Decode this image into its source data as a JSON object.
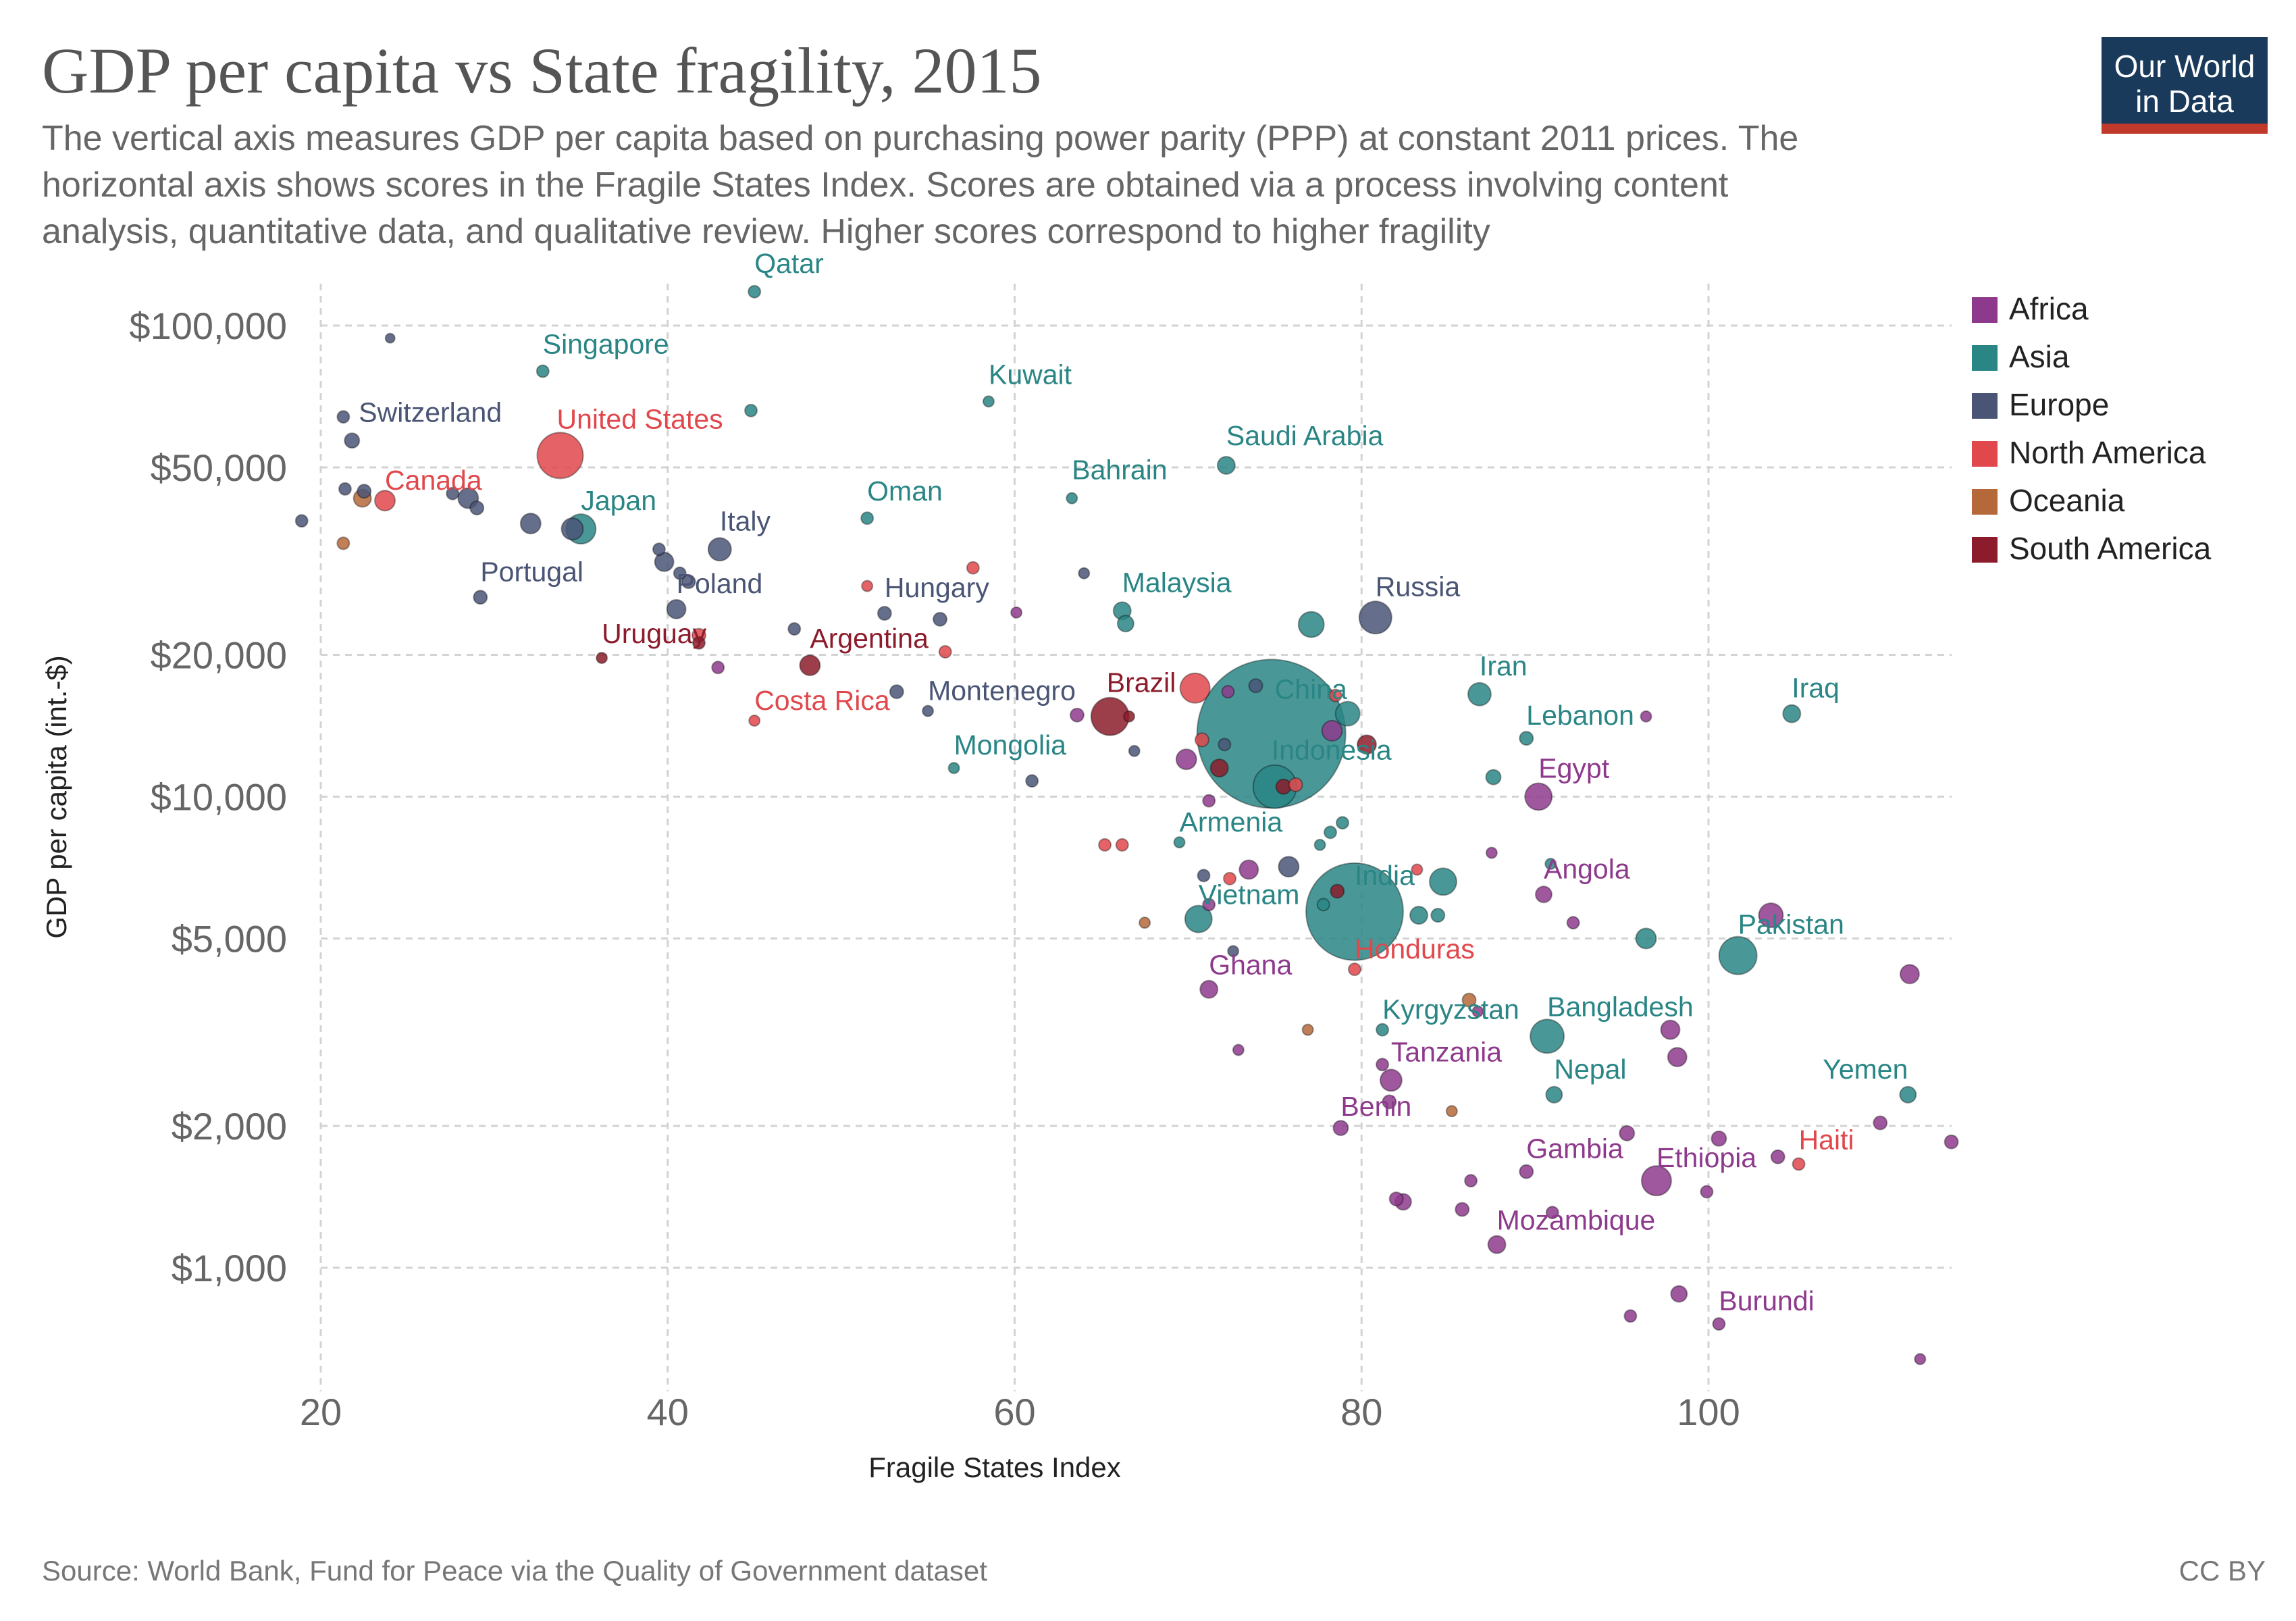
{
  "header": {
    "title": "GDP per capita vs State fragility, 2015",
    "subtitle_lines": [
      "The vertical axis measures GDP per capita based on purchasing power parity (PPP) at constant 2011 prices. The",
      "horizontal axis shows scores in the Fragile States Index. Scores are obtained via a process involving content",
      "analysis, quantitative data, and qualitative review. Higher scores correspond to higher fragility"
    ]
  },
  "logo": {
    "line1": "Our World",
    "line2": "in Data",
    "bg": "#1a3a5c",
    "accent": "#c0392b"
  },
  "footer": {
    "source": "Source: World Bank, Fund for Peace via the Quality of Government dataset",
    "license": "CC BY"
  },
  "colors": {
    "Africa": "#8e3a8c",
    "Asia": "#2a8585",
    "Europe": "#4a5575",
    "North America": "#e0484c",
    "Oceania": "#b5693a",
    "South America": "#8c1c2c"
  },
  "chart_data": {
    "type": "scatter",
    "title": "GDP per capita vs State fragility, 2015",
    "xlabel": "Fragile States Index",
    "ylabel": "GDP per capita (int.-$)",
    "xlim": [
      19.5,
      114.5
    ],
    "ylim": [
      600,
      120000
    ],
    "yscale": "log",
    "x_ticks": [
      "20",
      "40",
      "60",
      "80",
      "100"
    ],
    "x_tick_values": [
      20,
      40,
      60,
      80,
      100
    ],
    "y_ticks": [
      "$1,000",
      "$2,000",
      "$5,000",
      "$10,000",
      "$20,000",
      "$50,000",
      "$100,000"
    ],
    "y_tick_values": [
      1000,
      2000,
      5000,
      10000,
      20000,
      50000,
      100000
    ],
    "grid": true,
    "legend_position": "right",
    "legend": [
      "Africa",
      "Asia",
      "Europe",
      "North America",
      "Oceania",
      "South America"
    ],
    "points": [
      {
        "name": "Qatar",
        "label": "Qatar",
        "x": 45,
        "y": 118000,
        "r": 9,
        "region": "Asia"
      },
      {
        "name": "Singapore",
        "label": "Singapore",
        "x": 32.8,
        "y": 80000,
        "r": 9,
        "region": "Asia"
      },
      {
        "name": "Kuwait",
        "label": "Kuwait",
        "x": 58.5,
        "y": 69000,
        "r": 8,
        "region": "Asia"
      },
      {
        "name": "Switzerland",
        "label": "Switzerland",
        "x": 21.8,
        "y": 57000,
        "r": 11,
        "region": "Europe"
      },
      {
        "name": "United States",
        "label": "United States",
        "x": 33.8,
        "y": 53000,
        "r": 34,
        "region": "North America"
      },
      {
        "name": "Saudi Arabia",
        "label": "Saudi Arabia",
        "x": 72.2,
        "y": 50500,
        "r": 13,
        "region": "Asia"
      },
      {
        "name": "Bahrain",
        "label": "Bahrain",
        "x": 63.3,
        "y": 43000,
        "r": 8,
        "region": "Asia"
      },
      {
        "name": "Canada",
        "label": "Canada",
        "x": 23.7,
        "y": 42500,
        "r": 15,
        "region": "North America"
      },
      {
        "name": "Oman",
        "label": "Oman",
        "x": 51.5,
        "y": 39000,
        "r": 9,
        "region": "Asia"
      },
      {
        "name": "Japan",
        "label": "Japan",
        "x": 35,
        "y": 37000,
        "r": 22,
        "region": "Asia"
      },
      {
        "name": "Italy",
        "label": "Italy",
        "x": 43,
        "y": 33500,
        "r": 17,
        "region": "Europe"
      },
      {
        "name": "Portugal",
        "label": "Portugal",
        "x": 29.2,
        "y": 26500,
        "r": 10,
        "region": "Europe"
      },
      {
        "name": "Poland",
        "label": "Poland",
        "x": 40.5,
        "y": 25000,
        "r": 14,
        "region": "Europe"
      },
      {
        "name": "Hungary",
        "label": "Hungary",
        "x": 52.5,
        "y": 24500,
        "r": 10,
        "region": "Europe"
      },
      {
        "name": "Malaysia",
        "label": "Malaysia",
        "x": 66.2,
        "y": 24800,
        "r": 13,
        "region": "Asia"
      },
      {
        "name": "Russia",
        "label": "Russia",
        "x": 80.8,
        "y": 24000,
        "r": 24,
        "region": "Europe"
      },
      {
        "name": "Uruguay",
        "label": "Uruguay",
        "x": 36.2,
        "y": 19700,
        "r": 8,
        "region": "South America"
      },
      {
        "name": "Argentina",
        "label": "Argentina",
        "x": 48.2,
        "y": 19000,
        "r": 15,
        "region": "South America"
      },
      {
        "name": "Iran",
        "label": "Iran",
        "x": 86.8,
        "y": 16500,
        "r": 17,
        "region": "Asia"
      },
      {
        "name": "Iraq",
        "label": "Iraq",
        "x": 104.8,
        "y": 15000,
        "r": 13,
        "region": "Asia"
      },
      {
        "name": "Costa Rica",
        "label": "Costa Rica",
        "x": 45,
        "y": 14500,
        "r": 8,
        "region": "North America"
      },
      {
        "name": "Montenegro",
        "label": "Montenegro",
        "x": 55,
        "y": 15200,
        "r": 8,
        "region": "Europe"
      },
      {
        "name": "Brazil",
        "label": "Brazil",
        "x": 65.5,
        "y": 14800,
        "r": 28,
        "region": "South America"
      },
      {
        "name": "China",
        "label": "China",
        "x": 74.8,
        "y": 13600,
        "r": 110,
        "region": "Asia"
      },
      {
        "name": "Lebanon",
        "label": "Lebanon",
        "x": 89.5,
        "y": 13300,
        "r": 10,
        "region": "Asia"
      },
      {
        "name": "Mongolia",
        "label": "Mongolia",
        "x": 56.5,
        "y": 11500,
        "r": 8,
        "region": "Asia"
      },
      {
        "name": "Indonesia",
        "label": "Indonesia",
        "x": 75,
        "y": 10500,
        "r": 32,
        "region": "Asia"
      },
      {
        "name": "Egypt",
        "label": "Egypt",
        "x": 90.2,
        "y": 10000,
        "r": 20,
        "region": "Africa"
      },
      {
        "name": "Armenia",
        "label": "Armenia",
        "x": 69.5,
        "y": 8000,
        "r": 8,
        "region": "Asia"
      },
      {
        "name": "India",
        "label": "India",
        "x": 79.6,
        "y": 5700,
        "r": 72,
        "region": "Asia"
      },
      {
        "name": "Angola",
        "label": "Angola",
        "x": 90.5,
        "y": 6200,
        "r": 12,
        "region": "Africa"
      },
      {
        "name": "Vietnam",
        "label": "Vietnam",
        "x": 70.6,
        "y": 5500,
        "r": 20,
        "region": "Asia"
      },
      {
        "name": "Pakistan",
        "label": "Pakistan",
        "x": 101.7,
        "y": 4600,
        "r": 28,
        "region": "Asia"
      },
      {
        "name": "Honduras",
        "label": "Honduras",
        "x": 79.6,
        "y": 4300,
        "r": 9,
        "region": "North America"
      },
      {
        "name": "Ghana",
        "label": "Ghana",
        "x": 71.2,
        "y": 3900,
        "r": 13,
        "region": "Africa"
      },
      {
        "name": "Kyrgyzstan",
        "label": "Kyrgyzstan",
        "x": 81.2,
        "y": 3200,
        "r": 9,
        "region": "Asia"
      },
      {
        "name": "Bangladesh",
        "label": "Bangladesh",
        "x": 90.7,
        "y": 3100,
        "r": 25,
        "region": "Asia"
      },
      {
        "name": "Tanzania",
        "label": "Tanzania",
        "x": 81.7,
        "y": 2500,
        "r": 16,
        "region": "Africa"
      },
      {
        "name": "Nepal",
        "label": "Nepal",
        "x": 91.1,
        "y": 2330,
        "r": 12,
        "region": "Asia"
      },
      {
        "name": "Yemen",
        "label": "Yemen",
        "x": 111.5,
        "y": 2330,
        "r": 12,
        "region": "Asia"
      },
      {
        "name": "Benin",
        "label": "Benin",
        "x": 78.8,
        "y": 1980,
        "r": 11,
        "region": "Africa"
      },
      {
        "name": "Ethiopia",
        "label": "Ethiopia",
        "x": 97,
        "y": 1530,
        "r": 22,
        "region": "Africa"
      },
      {
        "name": "Haiti",
        "label": "Haiti",
        "x": 105.2,
        "y": 1660,
        "r": 9,
        "region": "North America"
      },
      {
        "name": "Gambia",
        "label": "Gambia",
        "x": 89.5,
        "y": 1600,
        "r": 10,
        "region": "Africa"
      },
      {
        "name": "Mozambique",
        "label": "Mozambique",
        "x": 87.8,
        "y": 1120,
        "r": 13,
        "region": "Africa"
      },
      {
        "name": "Burundi",
        "label": "Burundi",
        "x": 100.6,
        "y": 760,
        "r": 9,
        "region": "Africa"
      },
      {
        "x": 24,
        "y": 94000,
        "r": 7,
        "region": "Europe"
      },
      {
        "x": 21.3,
        "y": 64000,
        "r": 9,
        "region": "Europe"
      },
      {
        "x": 44.8,
        "y": 66000,
        "r": 9,
        "region": "Asia"
      },
      {
        "x": 21.4,
        "y": 45000,
        "r": 9,
        "region": "Europe"
      },
      {
        "x": 22.5,
        "y": 44500,
        "r": 10,
        "region": "Europe"
      },
      {
        "x": 22.4,
        "y": 43000,
        "r": 13,
        "region": "Oceania"
      },
      {
        "x": 27.6,
        "y": 44000,
        "r": 9,
        "region": "Europe"
      },
      {
        "x": 28.5,
        "y": 43000,
        "r": 15,
        "region": "Europe"
      },
      {
        "x": 29,
        "y": 41000,
        "r": 10,
        "region": "Europe"
      },
      {
        "x": 18.9,
        "y": 38500,
        "r": 9,
        "region": "Europe"
      },
      {
        "x": 32.1,
        "y": 38000,
        "r": 15,
        "region": "Europe"
      },
      {
        "x": 34.5,
        "y": 37000,
        "r": 16,
        "region": "Europe"
      },
      {
        "x": 21.3,
        "y": 34500,
        "r": 9,
        "region": "Oceania"
      },
      {
        "x": 39.5,
        "y": 33500,
        "r": 9,
        "region": "Europe"
      },
      {
        "x": 39.8,
        "y": 31500,
        "r": 14,
        "region": "Europe"
      },
      {
        "x": 40.7,
        "y": 29800,
        "r": 9,
        "region": "Europe"
      },
      {
        "x": 41.2,
        "y": 28600,
        "r": 10,
        "region": "Europe"
      },
      {
        "x": 57.6,
        "y": 30600,
        "r": 9,
        "region": "North America"
      },
      {
        "x": 64,
        "y": 29800,
        "r": 8,
        "region": "Europe"
      },
      {
        "x": 51.5,
        "y": 28000,
        "r": 8,
        "region": "North America"
      },
      {
        "x": 60.1,
        "y": 24600,
        "r": 8,
        "region": "Africa"
      },
      {
        "x": 55.7,
        "y": 23800,
        "r": 10,
        "region": "Europe"
      },
      {
        "x": 47.3,
        "y": 22700,
        "r": 9,
        "region": "Europe"
      },
      {
        "x": 66.4,
        "y": 23300,
        "r": 12,
        "region": "Asia"
      },
      {
        "x": 77.1,
        "y": 23200,
        "r": 19,
        "region": "Asia"
      },
      {
        "x": 41.8,
        "y": 22000,
        "r": 10,
        "region": "North America"
      },
      {
        "x": 41.8,
        "y": 21200,
        "r": 9,
        "region": "South America"
      },
      {
        "x": 56,
        "y": 20300,
        "r": 9,
        "region": "North America"
      },
      {
        "x": 42.9,
        "y": 18800,
        "r": 9,
        "region": "Africa"
      },
      {
        "x": 53.2,
        "y": 16700,
        "r": 10,
        "region": "Europe"
      },
      {
        "x": 70.4,
        "y": 17000,
        "r": 22,
        "region": "North America"
      },
      {
        "x": 72.3,
        "y": 16700,
        "r": 9,
        "region": "Africa"
      },
      {
        "x": 73.9,
        "y": 17200,
        "r": 10,
        "region": "Europe"
      },
      {
        "x": 78.5,
        "y": 16400,
        "r": 9,
        "region": "North America"
      },
      {
        "x": 79.2,
        "y": 15000,
        "r": 18,
        "region": "Asia"
      },
      {
        "x": 63.6,
        "y": 14900,
        "r": 10,
        "region": "Africa"
      },
      {
        "x": 66.6,
        "y": 14800,
        "r": 8,
        "region": "South America"
      },
      {
        "x": 78.3,
        "y": 13800,
        "r": 15,
        "region": "Africa"
      },
      {
        "x": 80.3,
        "y": 12900,
        "r": 14,
        "region": "South America"
      },
      {
        "x": 70.8,
        "y": 13200,
        "r": 10,
        "region": "North America"
      },
      {
        "x": 72.1,
        "y": 12900,
        "r": 9,
        "region": "Europe"
      },
      {
        "x": 96.4,
        "y": 14800,
        "r": 8,
        "region": "Africa"
      },
      {
        "x": 66.9,
        "y": 12500,
        "r": 8,
        "region": "Europe"
      },
      {
        "x": 69.9,
        "y": 12000,
        "r": 15,
        "region": "Africa"
      },
      {
        "x": 71.8,
        "y": 11500,
        "r": 13,
        "region": "South America"
      },
      {
        "x": 61,
        "y": 10800,
        "r": 9,
        "region": "Europe"
      },
      {
        "x": 87.6,
        "y": 11000,
        "r": 11,
        "region": "Asia"
      },
      {
        "x": 75.5,
        "y": 10500,
        "r": 11,
        "region": "South America"
      },
      {
        "x": 76.2,
        "y": 10600,
        "r": 10,
        "region": "North America"
      },
      {
        "x": 71.2,
        "y": 9800,
        "r": 9,
        "region": "Africa"
      },
      {
        "x": 78.2,
        "y": 8400,
        "r": 9,
        "region": "Asia"
      },
      {
        "x": 78.9,
        "y": 8800,
        "r": 9,
        "region": "Asia"
      },
      {
        "x": 77.6,
        "y": 7900,
        "r": 8,
        "region": "Asia"
      },
      {
        "x": 65.2,
        "y": 7900,
        "r": 9,
        "region": "North America"
      },
      {
        "x": 66.2,
        "y": 7900,
        "r": 9,
        "region": "North America"
      },
      {
        "x": 87.5,
        "y": 7600,
        "r": 8,
        "region": "Africa"
      },
      {
        "x": 90.9,
        "y": 7200,
        "r": 8,
        "region": "Asia"
      },
      {
        "x": 83.2,
        "y": 7000,
        "r": 8,
        "region": "North America"
      },
      {
        "x": 72.4,
        "y": 6700,
        "r": 9,
        "region": "North America"
      },
      {
        "x": 70.9,
        "y": 6800,
        "r": 9,
        "region": "Europe"
      },
      {
        "x": 73.5,
        "y": 7000,
        "r": 14,
        "region": "Africa"
      },
      {
        "x": 75.8,
        "y": 7100,
        "r": 15,
        "region": "Europe"
      },
      {
        "x": 84.7,
        "y": 6600,
        "r": 20,
        "region": "Asia"
      },
      {
        "x": 78.6,
        "y": 6300,
        "r": 10,
        "region": "South America"
      },
      {
        "x": 71.2,
        "y": 5900,
        "r": 9,
        "region": "Africa"
      },
      {
        "x": 77.8,
        "y": 5900,
        "r": 9,
        "region": "Asia"
      },
      {
        "x": 83.3,
        "y": 5600,
        "r": 13,
        "region": "Asia"
      },
      {
        "x": 84.4,
        "y": 5600,
        "r": 10,
        "region": "Asia"
      },
      {
        "x": 67.5,
        "y": 5400,
        "r": 8,
        "region": "Oceania"
      },
      {
        "x": 92.2,
        "y": 5400,
        "r": 9,
        "region": "Africa"
      },
      {
        "x": 96.4,
        "y": 5000,
        "r": 15,
        "region": "Asia"
      },
      {
        "x": 103.6,
        "y": 5600,
        "r": 18,
        "region": "Africa"
      },
      {
        "x": 72.6,
        "y": 4700,
        "r": 8,
        "region": "Europe"
      },
      {
        "x": 111.6,
        "y": 4200,
        "r": 14,
        "region": "Africa"
      },
      {
        "x": 86.2,
        "y": 3700,
        "r": 10,
        "region": "Oceania"
      },
      {
        "x": 86.7,
        "y": 3500,
        "r": 8,
        "region": "Africa"
      },
      {
        "x": 76.9,
        "y": 3200,
        "r": 8,
        "region": "Oceania"
      },
      {
        "x": 97.8,
        "y": 3200,
        "r": 14,
        "region": "Africa"
      },
      {
        "x": 98.2,
        "y": 2800,
        "r": 14,
        "region": "Africa"
      },
      {
        "x": 72.9,
        "y": 2900,
        "r": 8,
        "region": "Africa"
      },
      {
        "x": 81.2,
        "y": 2700,
        "r": 9,
        "region": "Africa"
      },
      {
        "x": 81.6,
        "y": 2250,
        "r": 10,
        "region": "Africa"
      },
      {
        "x": 85.2,
        "y": 2150,
        "r": 8,
        "region": "Oceania"
      },
      {
        "x": 95.3,
        "y": 1930,
        "r": 11,
        "region": "Africa"
      },
      {
        "x": 100.6,
        "y": 1880,
        "r": 11,
        "region": "Africa"
      },
      {
        "x": 104,
        "y": 1720,
        "r": 10,
        "region": "Africa"
      },
      {
        "x": 109.9,
        "y": 2030,
        "r": 10,
        "region": "Africa"
      },
      {
        "x": 114,
        "y": 1850,
        "r": 10,
        "region": "Africa"
      },
      {
        "x": 86.3,
        "y": 1530,
        "r": 9,
        "region": "Africa"
      },
      {
        "x": 82,
        "y": 1400,
        "r": 10,
        "region": "Africa"
      },
      {
        "x": 82.4,
        "y": 1380,
        "r": 12,
        "region": "Africa"
      },
      {
        "x": 85.8,
        "y": 1330,
        "r": 10,
        "region": "Africa"
      },
      {
        "x": 91,
        "y": 1310,
        "r": 9,
        "region": "Africa"
      },
      {
        "x": 99.9,
        "y": 1450,
        "r": 9,
        "region": "Africa"
      },
      {
        "x": 98.3,
        "y": 880,
        "r": 12,
        "region": "Africa"
      },
      {
        "x": 95.5,
        "y": 790,
        "r": 9,
        "region": "Africa"
      },
      {
        "x": 112.2,
        "y": 640,
        "r": 8,
        "region": "Africa"
      }
    ]
  }
}
